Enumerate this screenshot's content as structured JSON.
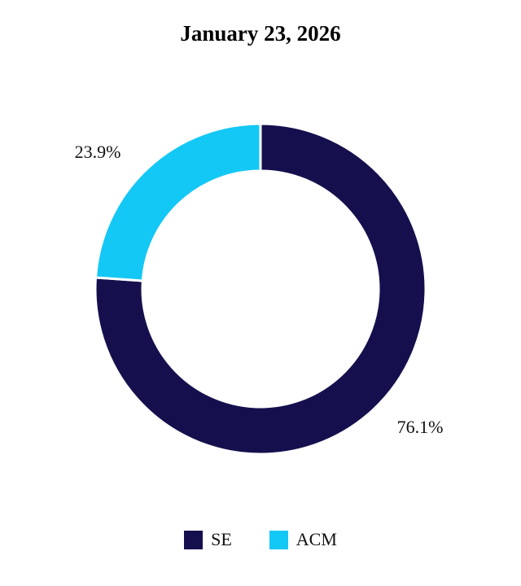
{
  "chart_data": {
    "type": "pie",
    "title": "January 23, 2026",
    "series": [
      {
        "name": "SE",
        "value": 76.1,
        "label": "76.1%",
        "color": "#15104d"
      },
      {
        "name": "ACM",
        "value": 23.9,
        "label": "23.9%",
        "color": "#14c8f5"
      }
    ],
    "donut": true,
    "legend_position": "bottom"
  }
}
